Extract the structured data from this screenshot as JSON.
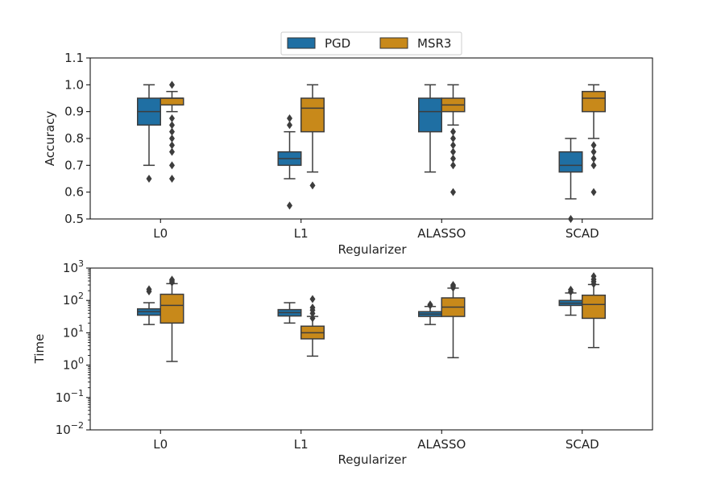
{
  "legend": {
    "placement": "top-center",
    "entries": [
      {
        "label": "PGD",
        "color": "#1f6fa3"
      },
      {
        "label": "MSR3",
        "color": "#c8891a"
      }
    ]
  },
  "chart_data": [
    {
      "type": "box",
      "title": "",
      "xlabel": "Regularizer",
      "ylabel": "Accuracy",
      "yscale": "linear",
      "ylim": [
        0.5,
        1.1
      ],
      "yticks": [
        "0.5",
        "0.6",
        "0.7",
        "0.8",
        "0.9",
        "1.0",
        "1.1"
      ],
      "categories": [
        "L0",
        "L1",
        "ALASSO",
        "SCAD"
      ],
      "grid": false,
      "series": [
        {
          "name": "PGD",
          "color": "#1f6fa3",
          "boxes": [
            {
              "whislo": 0.7,
              "q1": 0.85,
              "med": 0.9,
              "q3": 0.95,
              "whishi": 1.0,
              "fliers": [
                0.65
              ]
            },
            {
              "whislo": 0.65,
              "q1": 0.7,
              "med": 0.725,
              "q3": 0.75,
              "whishi": 0.825,
              "fliers": [
                0.55,
                0.85,
                0.875
              ]
            },
            {
              "whislo": 0.675,
              "q1": 0.825,
              "med": 0.9,
              "q3": 0.95,
              "whishi": 1.0,
              "fliers": []
            },
            {
              "whislo": 0.575,
              "q1": 0.675,
              "med": 0.7,
              "q3": 0.75,
              "whishi": 0.8,
              "fliers": [
                0.5
              ]
            }
          ]
        },
        {
          "name": "MSR3",
          "color": "#c8891a",
          "boxes": [
            {
              "whislo": 0.9,
              "q1": 0.925,
              "med": 0.95,
              "q3": 0.95,
              "whishi": 0.975,
              "fliers": [
                0.65,
                0.7,
                0.75,
                0.775,
                0.8,
                0.825,
                0.85,
                0.875,
                1.0
              ]
            },
            {
              "whislo": 0.675,
              "q1": 0.825,
              "med": 0.913,
              "q3": 0.95,
              "whishi": 1.0,
              "fliers": [
                0.625
              ]
            },
            {
              "whislo": 0.85,
              "q1": 0.9,
              "med": 0.925,
              "q3": 0.95,
              "whishi": 1.0,
              "fliers": [
                0.6,
                0.7,
                0.725,
                0.75,
                0.775,
                0.8,
                0.825
              ]
            },
            {
              "whislo": 0.8,
              "q1": 0.9,
              "med": 0.95,
              "q3": 0.975,
              "whishi": 1.0,
              "fliers": [
                0.6,
                0.7,
                0.725,
                0.75,
                0.775
              ]
            }
          ]
        }
      ]
    },
    {
      "type": "box",
      "title": "",
      "xlabel": "Regularizer",
      "ylabel": "Time",
      "yscale": "log",
      "ylim": [
        0.01,
        1000
      ],
      "yticks": [
        {
          "value": 0.01,
          "base": "10",
          "exp": "−2"
        },
        {
          "value": 0.1,
          "base": "10",
          "exp": "−1"
        },
        {
          "value": 1,
          "base": "10",
          "exp": "0"
        },
        {
          "value": 10,
          "base": "10",
          "exp": "1"
        },
        {
          "value": 100,
          "base": "10",
          "exp": "2"
        },
        {
          "value": 1000,
          "base": "10",
          "exp": "3"
        }
      ],
      "categories": [
        "L0",
        "L1",
        "ALASSO",
        "SCAD"
      ],
      "grid": false,
      "series": [
        {
          "name": "PGD",
          "color": "#1f6fa3",
          "boxes": [
            {
              "whislo": 18,
              "q1": 35,
              "med": 45,
              "q3": 55,
              "whishi": 85,
              "fliers": [
                190,
                220
              ]
            },
            {
              "whislo": 20,
              "q1": 33,
              "med": 42,
              "q3": 52,
              "whishi": 85,
              "fliers": []
            },
            {
              "whislo": 18,
              "q1": 32,
              "med": 38,
              "q3": 45,
              "whishi": 65,
              "fliers": [
                70,
                75
              ]
            },
            {
              "whislo": 35,
              "q1": 70,
              "med": 82,
              "q3": 100,
              "whishi": 170,
              "fliers": [
                185,
                215
              ]
            }
          ]
        },
        {
          "name": "MSR3",
          "color": "#c8891a",
          "boxes": [
            {
              "whislo": 1.3,
              "q1": 20,
              "med": 70,
              "q3": 155,
              "whishi": 330,
              "fliers": [
                360,
                400,
                440
              ]
            },
            {
              "whislo": 1.9,
              "q1": 6.5,
              "med": 10,
              "q3": 16,
              "whishi": 32,
              "fliers": [
                28,
                40,
                50,
                60,
                110
              ]
            },
            {
              "whislo": 1.7,
              "q1": 32,
              "med": 62,
              "q3": 120,
              "whishi": 240,
              "fliers": [
                245,
                275,
                300
              ]
            },
            {
              "whislo": 3.5,
              "q1": 28,
              "med": 75,
              "q3": 145,
              "whishi": 310,
              "fliers": [
                320,
                380,
                450,
                560
              ]
            }
          ]
        }
      ]
    }
  ]
}
